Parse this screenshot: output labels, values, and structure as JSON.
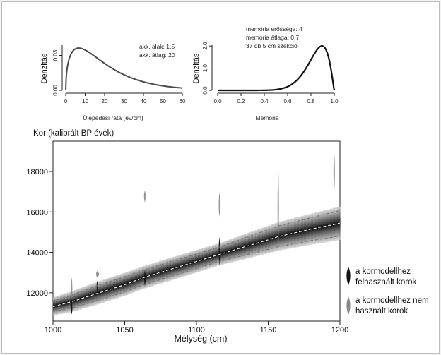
{
  "chart_data": [
    {
      "type": "line",
      "name": "acc-prior",
      "xlabel": "Ülepedési ráta (év/cm)",
      "ylabel": "Denzitás",
      "xlim": [
        0,
        60
      ],
      "ylim": [
        0,
        0.04
      ],
      "xticks": [
        0,
        10,
        20,
        30,
        40,
        50,
        60
      ],
      "yticks": [
        0.0,
        0.03
      ],
      "ytick_labels": [
        "0.00",
        "0.03"
      ],
      "annotations": [
        "akk. alak:  1.5",
        "akk. átlag:  20"
      ],
      "gamma_shape": 1.5,
      "gamma_mean": 20
    },
    {
      "type": "line",
      "name": "mem-prior",
      "xlabel": "Memória",
      "ylabel": "Denzitás",
      "xlim": [
        0,
        1
      ],
      "ylim": [
        0,
        2.1
      ],
      "xticks": [
        0.0,
        0.2,
        0.4,
        0.6,
        0.8,
        1.0
      ],
      "xtick_labels": [
        "0.0",
        "0.2",
        "0.4",
        "0.6",
        "0.8",
        "1.0"
      ],
      "yticks": [
        0.0,
        1.0,
        2.0
      ],
      "ytick_labels": [
        "0.0",
        "1.0",
        "2.0"
      ],
      "annotations": [
        "memória erőssége: 4",
        "memória átlaga: 0.7",
        "37 db 5 cm szekció"
      ],
      "beta_a": 11.2,
      "beta_b": 2.2,
      "beta_max": 2.0
    },
    {
      "type": "area",
      "name": "age-depth",
      "ylabel": "Kor (kalibrált BP évek)",
      "xlabel": "Mélység (cm)",
      "xlim": [
        1000,
        1200
      ],
      "ylim": [
        10600,
        19500
      ],
      "xticks": [
        1000,
        1050,
        1100,
        1150,
        1200
      ],
      "yticks": [
        12000,
        14000,
        16000,
        18000
      ],
      "model": {
        "depth": [
          1000,
          1013,
          1030,
          1050,
          1063,
          1080,
          1100,
          1116,
          1130,
          1150,
          1157,
          1180,
          1196,
          1200
        ],
        "mean": [
          11320,
          11560,
          11950,
          12400,
          12750,
          13120,
          13550,
          13900,
          14200,
          14620,
          14780,
          15150,
          15380,
          15450
        ],
        "lower": [
          11080,
          11250,
          11600,
          12050,
          12400,
          12760,
          13200,
          13560,
          13800,
          14150,
          14280,
          14580,
          14760,
          14820
        ],
        "upper": [
          11580,
          11880,
          12330,
          12800,
          13120,
          13500,
          13920,
          14260,
          14620,
          15120,
          15300,
          15720,
          16000,
          16070
        ]
      },
      "dates": [
        {
          "depth": 1013,
          "age": 12230,
          "spread": 520,
          "used": false
        },
        {
          "depth": 1013,
          "age": 11250,
          "spread": 320,
          "used": true
        },
        {
          "depth": 1031,
          "age": 12920,
          "spread": 170,
          "used": false
        },
        {
          "depth": 1031,
          "age": 12320,
          "spread": 300,
          "used": true
        },
        {
          "depth": 1064,
          "age": 16770,
          "spread": 300,
          "used": false
        },
        {
          "depth": 1064,
          "age": 12730,
          "spread": 420,
          "used": true
        },
        {
          "depth": 1116,
          "age": 16360,
          "spread": 600,
          "used": false
        },
        {
          "depth": 1116,
          "age": 14060,
          "spread": 720,
          "used": true
        },
        {
          "depth": 1157,
          "age": 16200,
          "spread": 2200,
          "used": false
        },
        {
          "depth": 1196,
          "age": 17980,
          "spread": 1000,
          "used": false
        }
      ],
      "legend": {
        "placement": "right",
        "used_label": [
          "a kormodellhez",
          "felhasznált korok"
        ],
        "unused_label": [
          "a kormodellhez nem",
          "használt korok"
        ]
      }
    }
  ]
}
